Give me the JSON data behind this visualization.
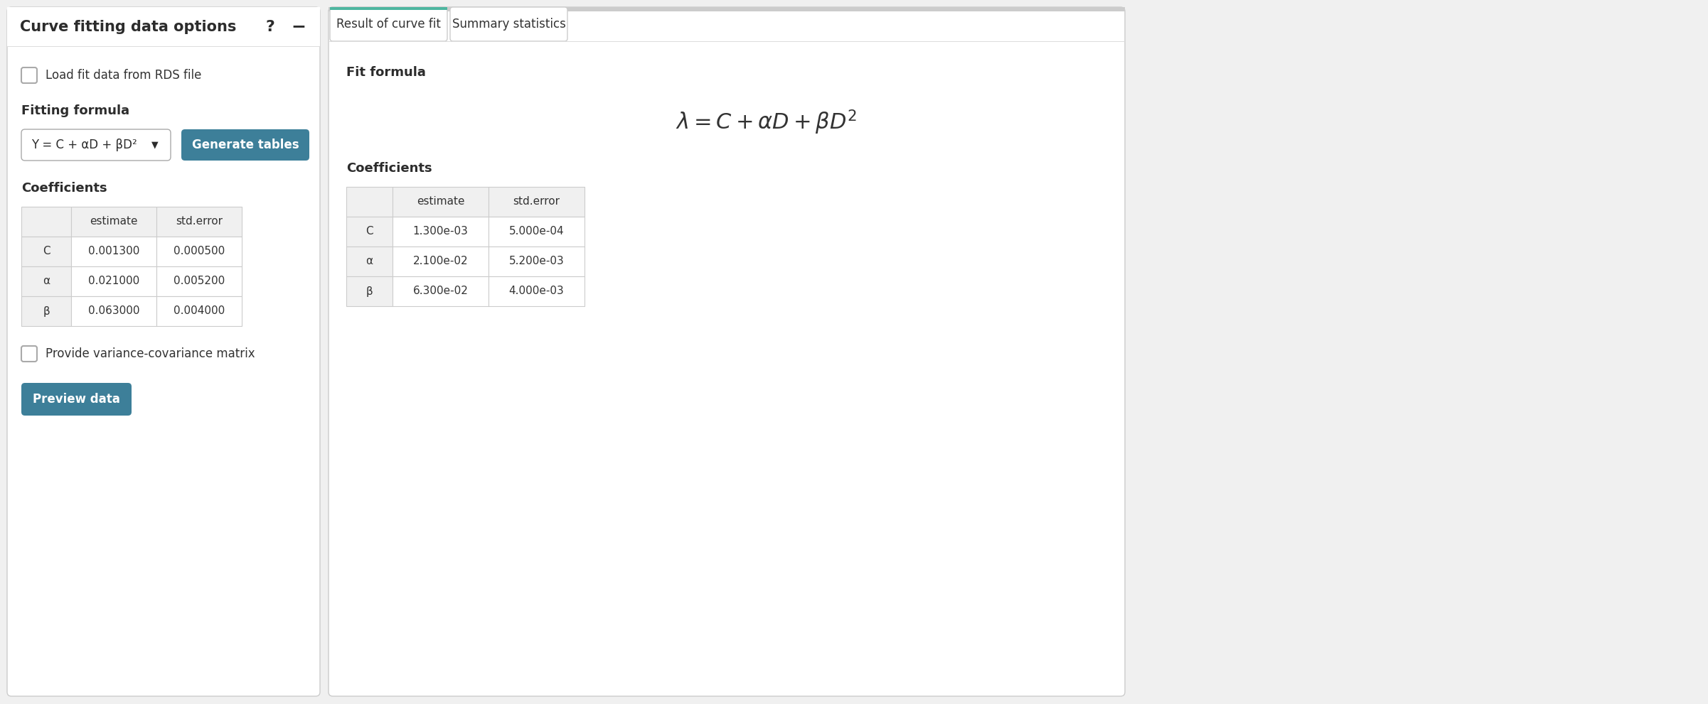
{
  "fig_width": 24.02,
  "fig_height": 9.91,
  "dpi": 100,
  "bg_color": "#f0f0f0",
  "panel_bg": "#ffffff",
  "left_border_color": "#3d8fa0",
  "right_tab_active_color": "#4db6a0",
  "bold_text_color": "#2c2c2c",
  "body_text_color": "#333333",
  "button_color": "#3d7f99",
  "table_header_bg": "#f0f0f0",
  "table_border_color": "#cccccc",
  "left_panel_title": "Curve fitting data options",
  "tab1_label": "Result of curve fit",
  "tab2_label": "Summary statistics",
  "fit_formula_label": "Fit formula",
  "formula_math": "$\\lambda = C + \\alpha D + \\beta D^2$",
  "coefficients_label": "Coefficients",
  "fitting_formula_label": "Fitting formula",
  "load_rds_label": "Load fit data from RDS file",
  "dropdown_text": "Y = C + αD + βD²",
  "generate_btn": "Generate tables",
  "variance_label": "Provide variance-covariance matrix",
  "preview_btn": "Preview data",
  "left_table_headers": [
    "",
    "estimate",
    "std.error"
  ],
  "left_table_rows": [
    [
      "C",
      "0.001300",
      "0.000500"
    ],
    [
      "α",
      "0.021000",
      "0.005200"
    ],
    [
      "β",
      "0.063000",
      "0.004000"
    ]
  ],
  "right_table_headers": [
    "",
    "estimate",
    "std.error"
  ],
  "right_table_rows": [
    [
      "C",
      "1.300e-03",
      "5.000e-04"
    ],
    [
      "α",
      "2.100e-02",
      "5.200e-03"
    ],
    [
      "β",
      "6.300e-02",
      "4.000e-03"
    ]
  ]
}
